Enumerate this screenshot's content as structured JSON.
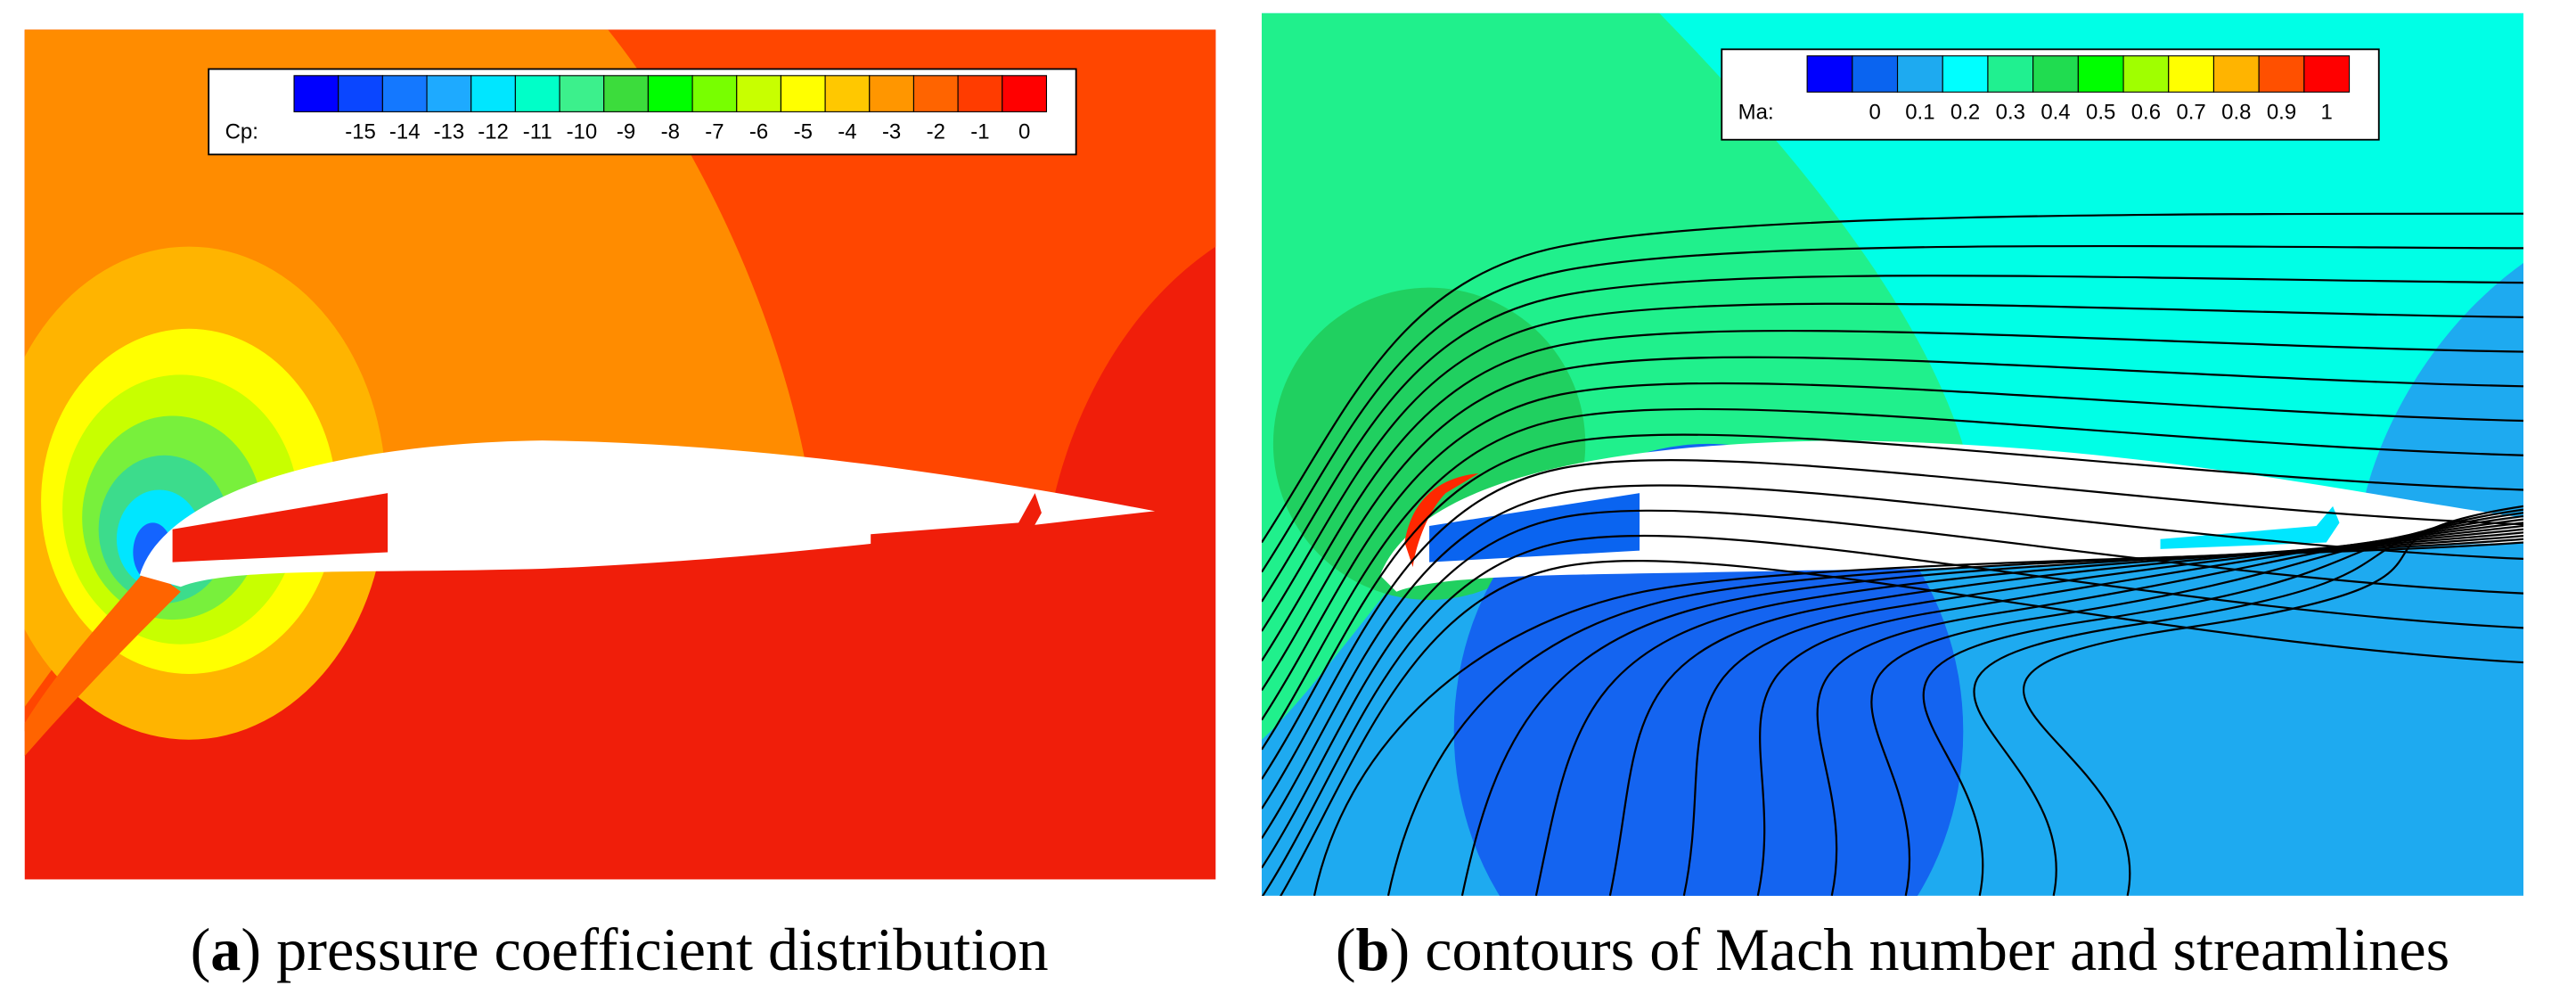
{
  "panels": [
    {
      "caption": {
        "open": "(",
        "label": "a",
        "text": ") pressure coefficient distribution"
      },
      "legend": {
        "title": "Cp:",
        "ticks": [
          -15,
          -14,
          -13,
          -12,
          -11,
          -10,
          -9,
          -8,
          -7,
          -6,
          -5,
          -4,
          -3,
          -2,
          -1,
          0
        ],
        "colors": [
          "#0000ff",
          "#0a46ff",
          "#1478ff",
          "#1eaaff",
          "#00e6ff",
          "#00ffc8",
          "#3cf08c",
          "#3cdc3c",
          "#00ff00",
          "#78ff00",
          "#c8ff00",
          "#ffff00",
          "#ffc800",
          "#ff9600",
          "#ff6400",
          "#ff3c00",
          "#ff0000"
        ]
      }
    },
    {
      "caption": {
        "open": "(",
        "label": "b",
        "text": ") contours of Mach number and streamlines"
      },
      "legend": {
        "title": "Ma:",
        "ticks": [
          0,
          0.1,
          0.2,
          0.3,
          0.4,
          0.5,
          0.6,
          0.7,
          0.8,
          0.9,
          1
        ],
        "colors": [
          "#0000ff",
          "#0a64f0",
          "#1eaaf0",
          "#00ffff",
          "#20f090",
          "#20dc50",
          "#00ff00",
          "#a0ff00",
          "#ffff00",
          "#ffb400",
          "#ff5000",
          "#ff0000"
        ]
      }
    }
  ]
}
